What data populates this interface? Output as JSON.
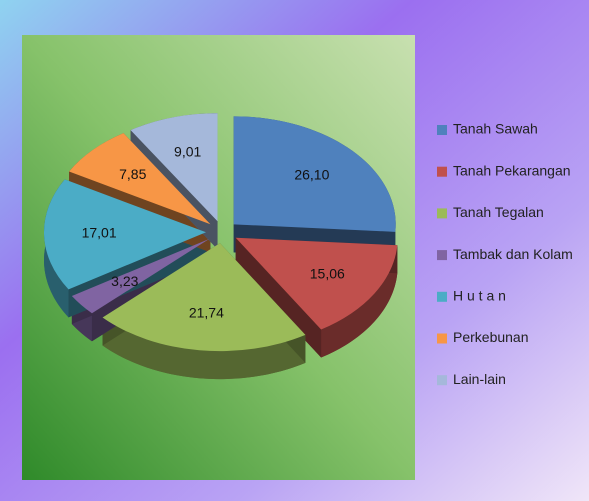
{
  "chart_data": {
    "type": "pie",
    "categories": [
      "Tanah Sawah",
      "Tanah Pekarangan",
      "Tanah Tegalan",
      "Tambak dan Kolam",
      "H u t a n",
      "Perkebunan",
      "Lain-lain"
    ],
    "values": [
      26.1,
      15.06,
      21.74,
      3.23,
      17.01,
      7.85,
      9.01
    ],
    "value_labels": [
      "26,10",
      "15,06",
      "21,74",
      "3,23",
      "17,01",
      "7,85",
      "9,01"
    ],
    "colors": [
      "#4f81bd",
      "#c0504d",
      "#9bbb59",
      "#8064a2",
      "#4bacc6",
      "#f79646",
      "#a5b8da"
    ],
    "legend": "right"
  }
}
